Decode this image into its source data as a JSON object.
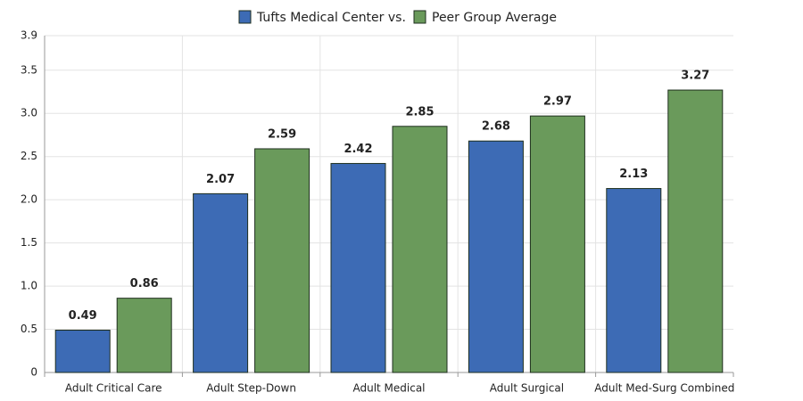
{
  "chart_data": {
    "type": "bar",
    "categories": [
      "Adult Critical Care",
      "Adult Step-Down",
      "Adult Medical",
      "Adult Surgical",
      "Adult Med-Surg Combined"
    ],
    "series": [
      {
        "name": "Tufts Medical Center vs.",
        "color": "#3d6bb5",
        "values": [
          0.49,
          2.07,
          2.42,
          2.68,
          2.13
        ]
      },
      {
        "name": "Peer Group Average",
        "color": "#6a9a5b",
        "values": [
          0.86,
          2.59,
          2.85,
          2.97,
          3.27
        ]
      }
    ],
    "ylim": [
      0,
      3.9
    ],
    "yticks": [
      0,
      0.5,
      {
        "value": 1,
        "label": "1.0"
      },
      1.5,
      {
        "value": 2,
        "label": "2.0"
      },
      2.5,
      {
        "value": 3,
        "label": "3.0"
      },
      3.5,
      3.9
    ],
    "grid": true
  }
}
